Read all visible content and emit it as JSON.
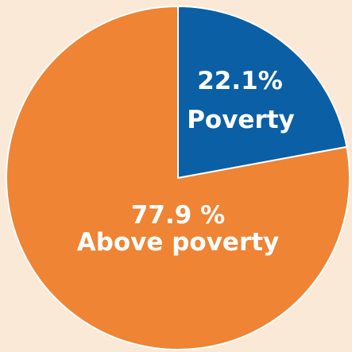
{
  "chart_data": {
    "type": "pie",
    "title": "",
    "start_angle_deg": 0,
    "direction": "clockwise",
    "slices": [
      {
        "label": "Poverty",
        "value": 22.1,
        "value_text": "22.1%",
        "color": "#0b5fa5"
      },
      {
        "label": "Above poverty",
        "value": 77.9,
        "value_text": "77.9 %",
        "color": "#ee8434"
      }
    ],
    "background_color": "#fbe9d8",
    "edge_color": "#ffffff"
  }
}
